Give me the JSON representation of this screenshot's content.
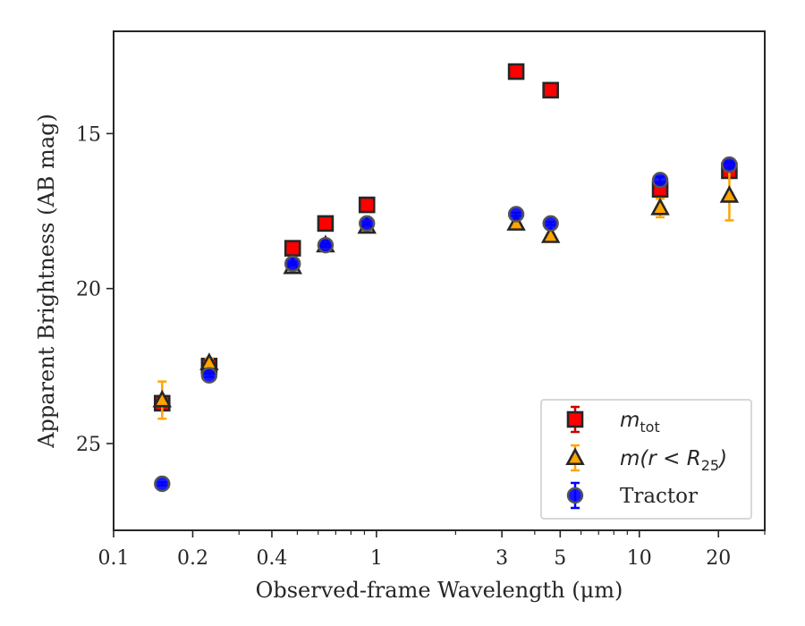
{
  "chart_data": {
    "type": "scatter",
    "xlabel": "Observed-frame Wavelength (μm)",
    "ylabel": "Apparent Brightness (AB mag)",
    "xscale": "log",
    "xlim": [
      0.1,
      30
    ],
    "ylim": [
      27.8,
      11.7
    ],
    "y_inverted": true,
    "x_ticks": [
      {
        "value": 0.1,
        "label": "0.1"
      },
      {
        "value": 0.2,
        "label": "0.2"
      },
      {
        "value": 0.4,
        "label": "0.4"
      },
      {
        "value": 1,
        "label": "1"
      },
      {
        "value": 3,
        "label": "3"
      },
      {
        "value": 5,
        "label": "5"
      },
      {
        "value": 10,
        "label": "10"
      },
      {
        "value": 20,
        "label": "20"
      }
    ],
    "y_ticks": [
      {
        "value": 15,
        "label": "15"
      },
      {
        "value": 20,
        "label": "20"
      },
      {
        "value": 25,
        "label": "25"
      }
    ],
    "legend_position": "lower-right",
    "grid": false,
    "series": [
      {
        "name": "m_tot",
        "legend_main": "m",
        "legend_sub": "tot",
        "marker": "square",
        "color": "#ff0000",
        "errorbar_color": "#cc0000",
        "points": [
          {
            "x": 0.153,
            "y": 23.7,
            "err": 0.2
          },
          {
            "x": 0.231,
            "y": 22.5,
            "err": 0.1
          },
          {
            "x": 0.48,
            "y": 18.7,
            "err": 0.05
          },
          {
            "x": 0.64,
            "y": 17.9,
            "err": 0.05
          },
          {
            "x": 0.92,
            "y": 17.3,
            "err": 0.05
          },
          {
            "x": 3.4,
            "y": 13.0,
            "err": 0.05
          },
          {
            "x": 4.6,
            "y": 13.6,
            "err": 0.05
          },
          {
            "x": 12.0,
            "y": 16.8,
            "err": 0.15
          },
          {
            "x": 22.0,
            "y": 16.2,
            "err": 0.2
          }
        ]
      },
      {
        "name": "m(r<R_25)",
        "legend_main": "m(r < R",
        "legend_sub": "25",
        "legend_tail": ")",
        "marker": "triangle",
        "color": "#ffa500",
        "errorbar_color": "#ffa500",
        "points": [
          {
            "x": 0.153,
            "y": 23.6,
            "err": 0.6
          },
          {
            "x": 0.231,
            "y": 22.4,
            "err": 0.15
          },
          {
            "x": 0.48,
            "y": 19.3,
            "err": 0.05
          },
          {
            "x": 0.64,
            "y": 18.6,
            "err": 0.05
          },
          {
            "x": 0.92,
            "y": 18.0,
            "err": 0.05
          },
          {
            "x": 3.4,
            "y": 17.9,
            "err": 0.05
          },
          {
            "x": 4.6,
            "y": 18.3,
            "err": 0.05
          },
          {
            "x": 12.0,
            "y": 17.4,
            "err": 0.3
          },
          {
            "x": 22.0,
            "y": 17.0,
            "err": 0.8
          }
        ]
      },
      {
        "name": "Tractor",
        "legend_main": "Tractor",
        "marker": "circle",
        "color": "#0000ff",
        "errorbar_color": "#0000ff",
        "points": [
          {
            "x": 0.153,
            "y": 26.3,
            "err": 0.05
          },
          {
            "x": 0.231,
            "y": 22.8,
            "err": 0.05
          },
          {
            "x": 0.48,
            "y": 19.2,
            "err": 0.05
          },
          {
            "x": 0.64,
            "y": 18.6,
            "err": 0.05
          },
          {
            "x": 0.92,
            "y": 17.9,
            "err": 0.05
          },
          {
            "x": 3.4,
            "y": 17.6,
            "err": 0.05
          },
          {
            "x": 4.6,
            "y": 17.9,
            "err": 0.05
          },
          {
            "x": 12.0,
            "y": 16.5,
            "err": 0.1
          },
          {
            "x": 22.0,
            "y": 16.0,
            "err": 0.1
          }
        ]
      }
    ]
  }
}
